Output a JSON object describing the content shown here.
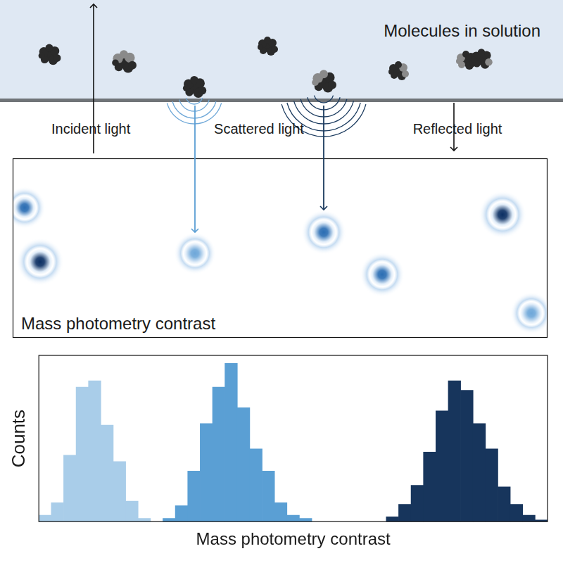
{
  "diagram": {
    "top_label": "Molecules in solution",
    "incident_label": "Incident light",
    "scattered_label": "Scattered light",
    "reflected_label": "Reflected light",
    "image_panel_label": "Mass photometry contrast"
  },
  "chart_data": {
    "type": "histogram",
    "x_label": "Mass photometry contrast",
    "y_label": "Counts",
    "xlim": [
      0,
      41
    ],
    "ylim": [
      0,
      105
    ],
    "grid": false,
    "tick_labels": false,
    "series": [
      {
        "color": "#a9cde9",
        "bins": [
          0,
          1,
          2,
          3,
          4,
          5,
          6,
          7,
          8,
          9
        ],
        "values": [
          4,
          12,
          42,
          85,
          89,
          61,
          38,
          13,
          2
        ]
      },
      {
        "color": "#5a9fd4",
        "bins": [
          10,
          11,
          12,
          13,
          14,
          15,
          16,
          17,
          18,
          19,
          20,
          21,
          22
        ],
        "values": [
          2,
          10,
          32,
          62,
          85,
          100,
          72,
          46,
          32,
          12,
          4,
          2
        ]
      },
      {
        "color": "#17355c",
        "bins": [
          28,
          29,
          30,
          31,
          32,
          33,
          34,
          35,
          36,
          37,
          38,
          39,
          40,
          41
        ],
        "values": [
          3,
          11,
          23,
          44,
          70,
          89,
          83,
          62,
          46,
          22,
          11,
          4,
          1
        ]
      }
    ]
  }
}
